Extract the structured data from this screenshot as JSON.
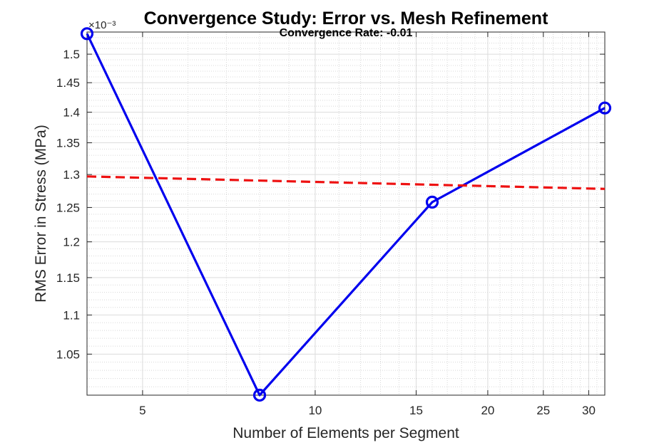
{
  "chart_data": {
    "type": "line",
    "title": "Convergence Study: Error vs. Mesh Refinement",
    "subtitle": "Convergence Rate: -0.01",
    "xlabel": "Number of Elements per Segment",
    "ylabel": "RMS Error in Stress (MPa)",
    "x_scale": "log",
    "y_scale": "log",
    "xlim": [
      4,
      32
    ],
    "ylim": [
      1.0,
      1.54
    ],
    "y_multiplier": "×10⁻³",
    "grid": true,
    "minor_grid": true,
    "x_ticks": [
      5,
      10,
      15,
      20,
      25,
      30
    ],
    "x_tick_labels": [
      "5",
      "10",
      "15",
      "20",
      "25",
      "30"
    ],
    "y_ticks": [
      1.05,
      1.1,
      1.15,
      1.2,
      1.25,
      1.3,
      1.35,
      1.4,
      1.45,
      1.5
    ],
    "y_tick_labels": [
      "1.05",
      "1.1",
      "1.15",
      "1.2",
      "1.25",
      "1.3",
      "1.35",
      "1.4",
      "1.45",
      "1.5"
    ],
    "series": [
      {
        "style": "solid-circle-markers",
        "color": "#0000ee",
        "x": [
          4,
          8,
          16,
          32
        ],
        "y": [
          1.537,
          1.0,
          1.258,
          1.407
        ]
      },
      {
        "style": "dashed",
        "color": "#ee1111",
        "x": [
          4,
          32
        ],
        "y": [
          1.297,
          1.278
        ]
      }
    ]
  }
}
